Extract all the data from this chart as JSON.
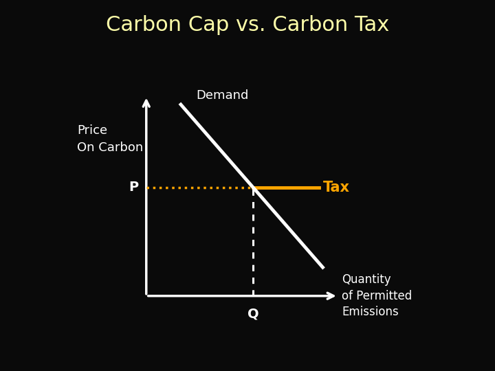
{
  "title": "Carbon Cap vs. Carbon Tax",
  "title_color": "#FFFFAA",
  "title_fontsize": 22,
  "background_color": "#0a0a0a",
  "ylabel": "Price\nOn Carbon",
  "ylabel_color": "#ffffff",
  "ylabel_fontsize": 13,
  "xlabel_label": "Quantity\nof Permitted\nEmissions",
  "xlabel_color": "#ffffff",
  "xlabel_fontsize": 12,
  "demand_label": "Demand",
  "demand_color": "#ffffff",
  "tax_color": "#FFA500",
  "tax_label": "Tax",
  "p_label": "P",
  "p_color": "#ffffff",
  "q_label": "Q",
  "q_color": "#ffffff",
  "dotted_horiz_color": "#FFA500",
  "dotted_vert_color": "#ffffff",
  "axis_color": "#ffffff",
  "axis_linewidth": 2.5
}
